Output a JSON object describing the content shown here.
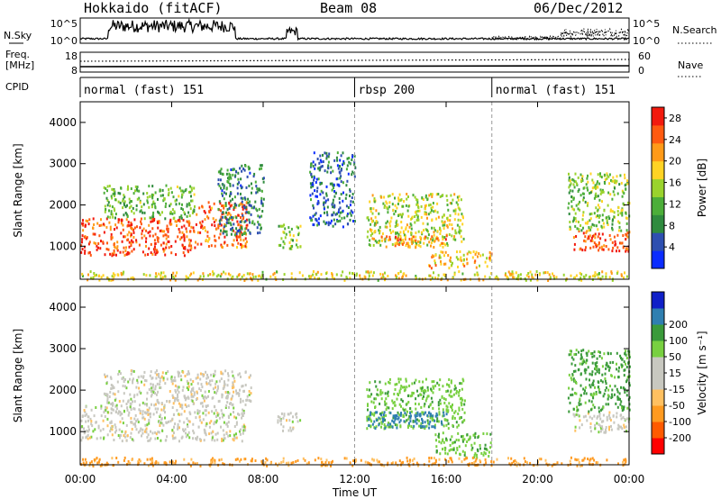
{
  "header": {
    "station": "Hokkaido (fitACF)",
    "beam": "Beam 08",
    "date": "06/Dec/2012"
  },
  "panels": {
    "nsky_label": "N.Sky",
    "nsky_ticks": [
      "10^5",
      "10^0"
    ],
    "nsearch_ticks": [
      "10^5",
      "10^0"
    ],
    "nsearch_label": "N.Search",
    "freq_label": "Freq.",
    "freq_unit": "[MHz]",
    "freq_ticks": [
      "18",
      "8"
    ],
    "nave_ticks": [
      "60",
      "0"
    ],
    "nave_label": "Nave",
    "cpid_label": "CPID",
    "cpid_segments": [
      {
        "label": "normal (fast) 151",
        "start_hour": 0
      },
      {
        "label": "rbsp 200",
        "start_hour": 12
      },
      {
        "label": "normal (fast) 151",
        "start_hour": 18
      }
    ]
  },
  "colors": {
    "power_scale": [
      "#0b2cff",
      "#2e4fb0",
      "#2f8b3e",
      "#4cae39",
      "#9ad32d",
      "#ffd324",
      "#ff9a18",
      "#ff5a10",
      "#f21a0e"
    ],
    "velocity_scale": [
      "#ff0000",
      "#ff5a00",
      "#ff9a20",
      "#ffc060",
      "#c8c8c0",
      "#c8c8c0",
      "#78d040",
      "#3a9a3a",
      "#2f7fb0",
      "#1020c8"
    ]
  },
  "chart_data": [
    {
      "type": "heatmap",
      "panel": "power",
      "xlabel": "Time UT",
      "ylabel": "Slant Range [km]",
      "xlim": [
        0,
        24
      ],
      "ylim": [
        200,
        4500
      ],
      "xticks": [
        "00:00",
        "04:00",
        "08:00",
        "12:00",
        "16:00",
        "20:00",
        "00:00"
      ],
      "yticks": [
        "1000",
        "2000",
        "3000",
        "4000"
      ],
      "colorbar_label": "Power [dB]",
      "colorbar_ticks": [
        "4",
        "8",
        "12",
        "16",
        "20",
        "24",
        "28"
      ],
      "colorbar_range": [
        0,
        30
      ],
      "regions": [
        {
          "t": [
            0.0,
            5.0
          ],
          "r": [
            800,
            1700
          ],
          "v": 26
        },
        {
          "t": [
            1.0,
            5.0
          ],
          "r": [
            1700,
            2500
          ],
          "v": 12
        },
        {
          "t": [
            5.0,
            7.3
          ],
          "r": [
            1000,
            2100
          ],
          "v": 24
        },
        {
          "t": [
            6.0,
            8.0
          ],
          "r": [
            1300,
            3000
          ],
          "v": 8
        },
        {
          "t": [
            8.6,
            9.6
          ],
          "r": [
            950,
            1550
          ],
          "v": 14
        },
        {
          "t": [
            10.0,
            12.0
          ],
          "r": [
            1500,
            3300
          ],
          "v": 6
        },
        {
          "t": [
            12.5,
            16.8
          ],
          "r": [
            1050,
            2300
          ],
          "v": 16
        },
        {
          "t": [
            13.0,
            16.0
          ],
          "r": [
            1000,
            1300
          ],
          "v": 22
        },
        {
          "t": [
            15.2,
            18.0
          ],
          "r": [
            500,
            900
          ],
          "v": 20
        },
        {
          "t": [
            21.5,
            24.0
          ],
          "r": [
            900,
            1400
          ],
          "v": 26
        },
        {
          "t": [
            21.3,
            24.0
          ],
          "r": [
            1400,
            2800
          ],
          "v": 14
        },
        {
          "t": [
            0.0,
            24.0
          ],
          "r": [
            200,
            420
          ],
          "v": 18
        }
      ]
    },
    {
      "type": "heatmap",
      "panel": "velocity",
      "xlabel": "Time UT",
      "ylabel": "Slant Range [km]",
      "xlim": [
        0,
        24
      ],
      "ylim": [
        200,
        4500
      ],
      "xticks": [
        "00:00",
        "04:00",
        "08:00",
        "12:00",
        "16:00",
        "20:00",
        "00:00"
      ],
      "yticks": [
        "1000",
        "2000",
        "3000",
        "4000"
      ],
      "colorbar_label": "Velocity [m s⁻¹]",
      "colorbar_ticks": [
        "-200",
        "-100",
        "-50",
        "-15",
        "15",
        "50",
        "100",
        "200"
      ],
      "colorbar_range": [
        -250,
        250
      ],
      "regions": [
        {
          "t": [
            0.0,
            7.2
          ],
          "r": [
            800,
            1650
          ],
          "v": 0
        },
        {
          "t": [
            1.0,
            7.5
          ],
          "r": [
            1650,
            2500
          ],
          "v": 0
        },
        {
          "t": [
            8.6,
            9.6
          ],
          "r": [
            1000,
            1500
          ],
          "v": 0
        },
        {
          "t": [
            12.5,
            16.8
          ],
          "r": [
            1100,
            2300
          ],
          "v": 40
        },
        {
          "t": [
            12.5,
            16.0
          ],
          "r": [
            1100,
            1500
          ],
          "v": 150
        },
        {
          "t": [
            15.5,
            18.0
          ],
          "r": [
            400,
            1000
          ],
          "v": 40
        },
        {
          "t": [
            21.5,
            24.0
          ],
          "r": [
            1000,
            1500
          ],
          "v": 0
        },
        {
          "t": [
            21.3,
            24.0
          ],
          "r": [
            1500,
            3000
          ],
          "v": 60
        },
        {
          "t": [
            0.0,
            24.0
          ],
          "r": [
            200,
            400
          ],
          "v": -60
        }
      ]
    }
  ],
  "xlabel_bottom": "Time UT"
}
